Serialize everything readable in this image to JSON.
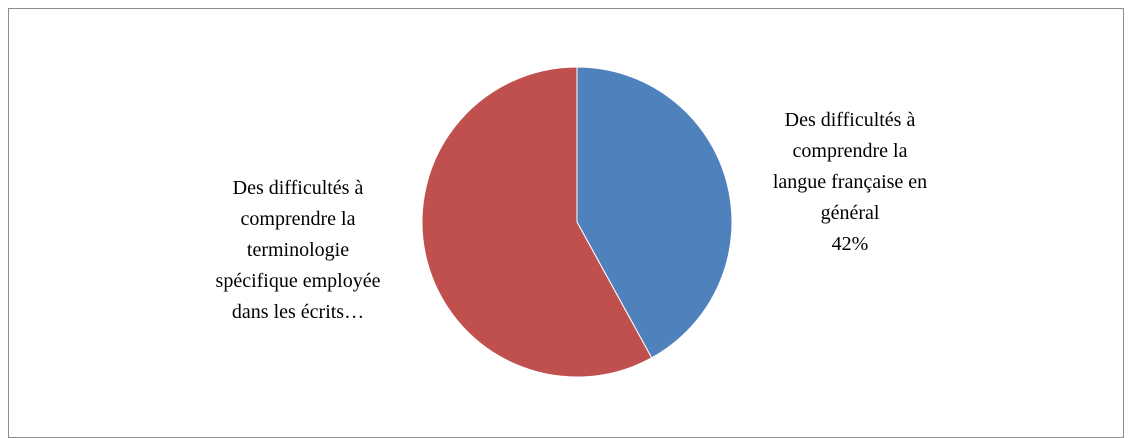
{
  "chart_data": {
    "type": "pie",
    "categories": [
      "Des difficultés à comprendre la langue française en général",
      "Des difficultés à comprendre la terminologie spécifique employée dans les écrits…"
    ],
    "values": [
      42,
      58
    ],
    "value_labels": [
      "42%",
      null
    ],
    "colors": [
      "#4f81bd",
      "#c0504d"
    ]
  }
}
